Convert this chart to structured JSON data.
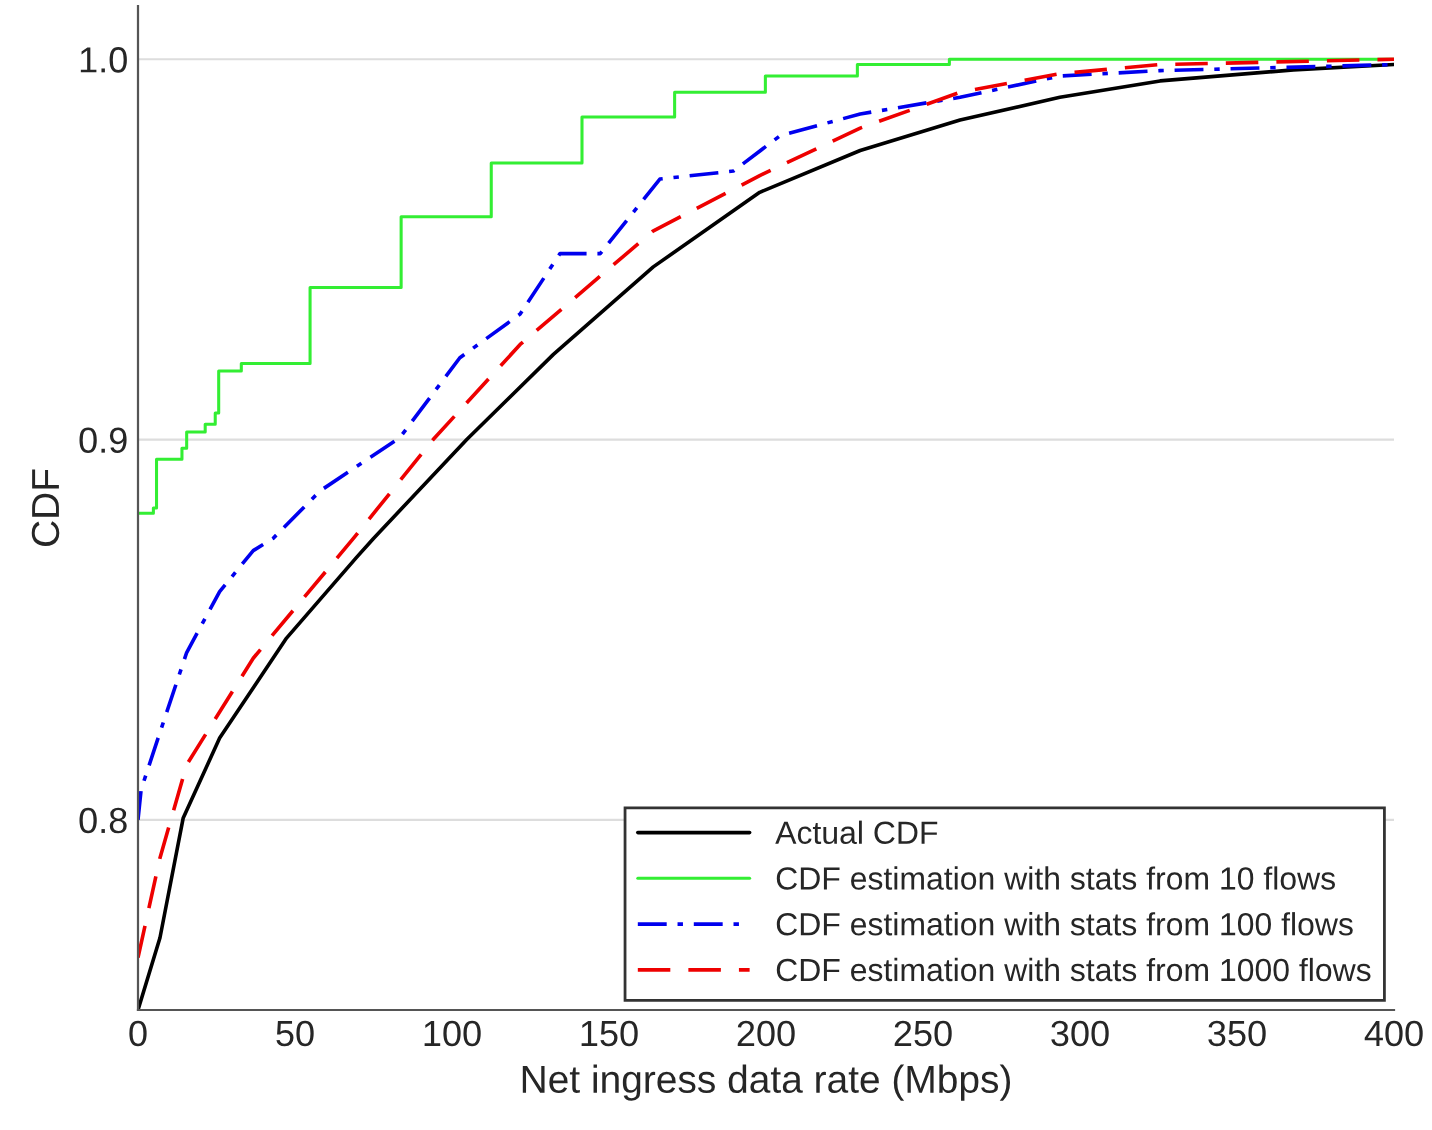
{
  "chart_data": {
    "type": "line",
    "xlabel": "Net ingress data rate (Mbps)",
    "ylabel": "CDF",
    "xlim": [
      0,
      400
    ],
    "xticks": [
      0,
      50,
      100,
      150,
      200,
      250,
      300,
      350,
      400
    ],
    "ylim": [
      0.75,
      1.014
    ],
    "yticks": [
      0.8,
      0.9,
      {
        "value": 1.0,
        "label": "1.0"
      }
    ],
    "grid": "y",
    "legend": "bottom right",
    "series": [
      {
        "name": "Actual CDF",
        "color": "#000000",
        "line_style": "solid",
        "x": [
          0,
          7,
          14.4,
          26,
          47.3,
          69.6,
          75,
          104.7,
          132.3,
          164.1,
          198,
          230,
          261.8,
          293.6,
          325.5,
          368,
          400
        ],
        "values": [
          0.75,
          0.769,
          0.8005,
          0.8215,
          0.8478,
          0.869,
          0.874,
          0.9,
          0.9224,
          0.9454,
          0.965,
          0.976,
          0.984,
          0.99,
          0.9943,
          0.9972,
          0.9986
        ]
      },
      {
        "name": "CDF estimation with stats from 10 flows",
        "color": "#33ee33",
        "type": "step",
        "line_style": "solid",
        "x": [
          0,
          4.9,
          5.9,
          14,
          15.5,
          21.4,
          24.6,
          25.7,
          32.9,
          54.8,
          83.8,
          112.5,
          141.4,
          170.9,
          199.8,
          229.1,
          258.4,
          400
        ],
        "values": [
          0.8806,
          0.882,
          0.8948,
          0.8977,
          0.902,
          0.904,
          0.907,
          0.918,
          0.92,
          0.94,
          0.9586,
          0.9727,
          0.9848,
          0.9913,
          0.9956,
          0.9986,
          1.0,
          1.0
        ]
      },
      {
        "name": "CDF estimation with stats from 100 flows",
        "color": "#0000ee",
        "line_style": "dashdot",
        "x": [
          0,
          1,
          7,
          15.5,
          26,
          36.7,
          43,
          58,
          83.4,
          102.5,
          121.7,
          134.4,
          147.2,
          166.2,
          189.6,
          204.5,
          230,
          261.8,
          293.6,
          325.5,
          400
        ],
        "values": [
          0.8,
          0.808,
          0.823,
          0.844,
          0.86,
          0.8708,
          0.874,
          0.8865,
          0.9005,
          0.9215,
          0.933,
          0.9489,
          0.9489,
          0.9685,
          0.9706,
          0.9799,
          0.9856,
          0.99,
          0.9956,
          0.997,
          0.9986
        ]
      },
      {
        "name": "CDF estimation with stats from 1000 flows",
        "color": "#ee0000",
        "line_style": "dashed",
        "x": [
          0,
          7,
          15.5,
          36.7,
          68.6,
          94,
          121.7,
          164,
          198,
          230,
          261.8,
          293.6,
          325.5,
          400
        ],
        "values": [
          0.7638,
          0.79,
          0.8145,
          0.8425,
          0.874,
          0.9,
          0.925,
          0.9548,
          0.9694,
          0.9819,
          0.9913,
          0.9962,
          0.9986,
          1.0
        ]
      }
    ]
  }
}
